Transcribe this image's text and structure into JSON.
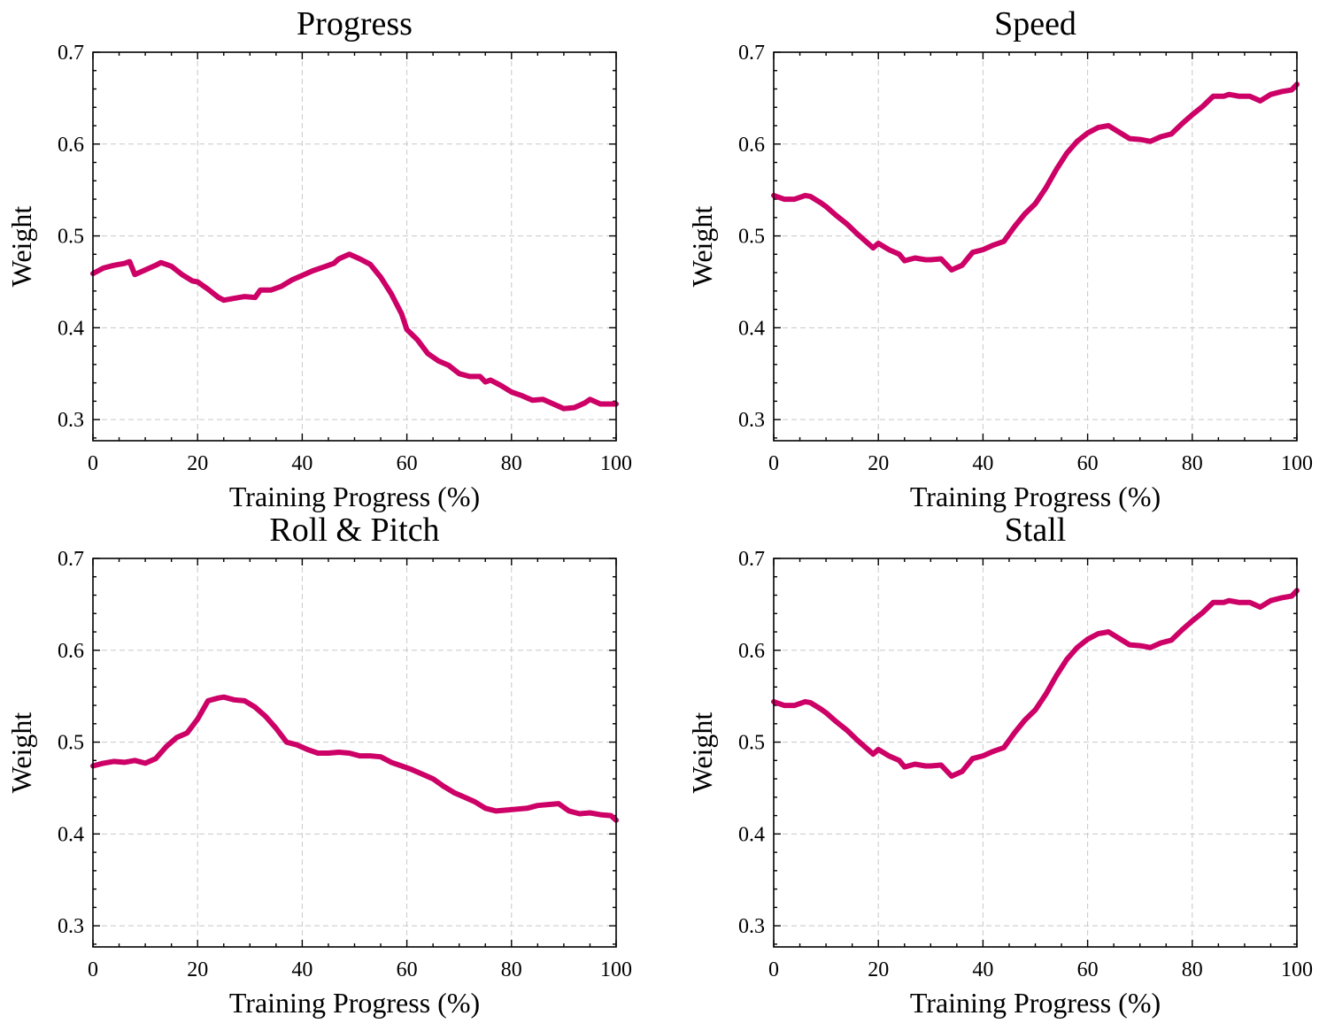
{
  "chart_data": [
    {
      "type": "line",
      "title": "Progress",
      "xlabel": "Training Progress (%)",
      "ylabel": "Weight",
      "xlim": [
        0,
        100
      ],
      "ylim": [
        0.277,
        0.7
      ],
      "xticks": [
        0,
        20,
        40,
        60,
        80,
        100
      ],
      "yticks": [
        0.3,
        0.4,
        0.5,
        0.6,
        0.7
      ],
      "xtick_labels": [
        "0",
        "20",
        "40",
        "60",
        "80",
        "100"
      ],
      "ytick_labels": [
        "0.3",
        "0.4",
        "0.5",
        "0.6",
        "0.7"
      ],
      "grid": true,
      "series": [
        {
          "color": "#cc0066",
          "x": [
            0,
            2,
            4,
            6,
            7,
            8,
            10,
            12,
            13,
            15,
            17,
            19,
            20,
            22,
            24,
            25,
            27,
            29,
            31,
            32,
            34,
            36,
            38,
            40,
            42,
            44,
            46,
            47,
            49,
            51,
            53,
            55,
            57,
            59,
            60,
            62,
            64,
            66,
            68,
            70,
            72,
            74,
            75,
            76,
            78,
            80,
            82,
            84,
            86,
            88,
            90,
            92,
            94,
            95,
            97,
            100
          ],
          "y": [
            0.459,
            0.465,
            0.468,
            0.47,
            0.472,
            0.458,
            0.463,
            0.468,
            0.471,
            0.467,
            0.458,
            0.451,
            0.45,
            0.442,
            0.433,
            0.43,
            0.432,
            0.434,
            0.433,
            0.441,
            0.441,
            0.445,
            0.452,
            0.457,
            0.462,
            0.466,
            0.47,
            0.475,
            0.48,
            0.475,
            0.469,
            0.455,
            0.437,
            0.415,
            0.398,
            0.387,
            0.372,
            0.364,
            0.359,
            0.35,
            0.347,
            0.347,
            0.341,
            0.343,
            0.337,
            0.33,
            0.326,
            0.321,
            0.322,
            0.317,
            0.312,
            0.313,
            0.318,
            0.322,
            0.317,
            0.317
          ]
        }
      ]
    },
    {
      "type": "line",
      "title": "Speed",
      "xlabel": "Training Progress (%)",
      "ylabel": "Weight",
      "xlim": [
        0,
        100
      ],
      "ylim": [
        0.277,
        0.7
      ],
      "xticks": [
        0,
        20,
        40,
        60,
        80,
        100
      ],
      "yticks": [
        0.3,
        0.4,
        0.5,
        0.6,
        0.7
      ],
      "xtick_labels": [
        "0",
        "20",
        "40",
        "60",
        "80",
        "100"
      ],
      "ytick_labels": [
        "0.3",
        "0.4",
        "0.5",
        "0.6",
        "0.7"
      ],
      "grid": true,
      "series": [
        {
          "color": "#cc0066",
          "x": [
            0,
            2,
            4,
            6,
            7,
            9,
            10,
            12,
            14,
            16,
            18,
            19,
            20,
            22,
            24,
            25,
            27,
            29,
            30,
            32,
            34,
            36,
            38,
            40,
            42,
            44,
            46,
            48,
            50,
            52,
            54,
            56,
            58,
            60,
            62,
            64,
            66,
            68,
            70,
            72,
            74,
            76,
            78,
            80,
            82,
            84,
            86,
            87,
            89,
            91,
            93,
            95,
            97,
            99,
            100
          ],
          "y": [
            0.544,
            0.54,
            0.54,
            0.544,
            0.543,
            0.536,
            0.532,
            0.522,
            0.513,
            0.502,
            0.492,
            0.487,
            0.492,
            0.485,
            0.48,
            0.473,
            0.476,
            0.474,
            0.474,
            0.475,
            0.463,
            0.468,
            0.482,
            0.485,
            0.49,
            0.494,
            0.51,
            0.524,
            0.535,
            0.552,
            0.572,
            0.59,
            0.603,
            0.612,
            0.618,
            0.62,
            0.613,
            0.606,
            0.605,
            0.603,
            0.608,
            0.611,
            0.622,
            0.632,
            0.641,
            0.652,
            0.652,
            0.654,
            0.652,
            0.652,
            0.647,
            0.654,
            0.657,
            0.659,
            0.665
          ]
        }
      ]
    },
    {
      "type": "line",
      "title": "Roll & Pitch",
      "xlabel": "Training Progress (%)",
      "ylabel": "Weight",
      "xlim": [
        0,
        100
      ],
      "ylim": [
        0.277,
        0.7
      ],
      "xticks": [
        0,
        20,
        40,
        60,
        80,
        100
      ],
      "yticks": [
        0.3,
        0.4,
        0.5,
        0.6,
        0.7
      ],
      "xtick_labels": [
        "0",
        "20",
        "40",
        "60",
        "80",
        "100"
      ],
      "ytick_labels": [
        "0.3",
        "0.4",
        "0.5",
        "0.6",
        "0.7"
      ],
      "grid": true,
      "series": [
        {
          "color": "#cc0066",
          "x": [
            0,
            2,
            4,
            6,
            8,
            10,
            12,
            14,
            16,
            18,
            20,
            22,
            24,
            25,
            27,
            29,
            31,
            33,
            35,
            37,
            39,
            41,
            43,
            45,
            47,
            49,
            51,
            53,
            55,
            57,
            59,
            61,
            63,
            65,
            67,
            69,
            71,
            73,
            75,
            77,
            79,
            81,
            83,
            85,
            87,
            89,
            91,
            93,
            95,
            97,
            99,
            100
          ],
          "y": [
            0.474,
            0.477,
            0.479,
            0.478,
            0.48,
            0.477,
            0.482,
            0.495,
            0.505,
            0.51,
            0.525,
            0.545,
            0.548,
            0.549,
            0.546,
            0.545,
            0.538,
            0.528,
            0.515,
            0.5,
            0.497,
            0.492,
            0.488,
            0.488,
            0.489,
            0.488,
            0.485,
            0.485,
            0.484,
            0.478,
            0.474,
            0.47,
            0.465,
            0.46,
            0.452,
            0.445,
            0.44,
            0.435,
            0.428,
            0.425,
            0.426,
            0.427,
            0.428,
            0.431,
            0.432,
            0.433,
            0.425,
            0.422,
            0.423,
            0.421,
            0.42,
            0.415
          ]
        }
      ]
    },
    {
      "type": "line",
      "title": "Stall",
      "xlabel": "Training Progress (%)",
      "ylabel": "Weight",
      "xlim": [
        0,
        100
      ],
      "ylim": [
        0.277,
        0.7
      ],
      "xticks": [
        0,
        20,
        40,
        60,
        80,
        100
      ],
      "yticks": [
        0.3,
        0.4,
        0.5,
        0.6,
        0.7
      ],
      "xtick_labels": [
        "0",
        "20",
        "40",
        "60",
        "80",
        "100"
      ],
      "ytick_labels": [
        "0.3",
        "0.4",
        "0.5",
        "0.6",
        "0.7"
      ],
      "grid": true,
      "series": [
        {
          "color": "#cc0066",
          "x": [
            0,
            2,
            4,
            6,
            7,
            9,
            10,
            12,
            14,
            16,
            18,
            19,
            20,
            22,
            24,
            25,
            27,
            29,
            30,
            32,
            34,
            36,
            38,
            40,
            42,
            44,
            46,
            48,
            50,
            52,
            54,
            56,
            58,
            60,
            62,
            64,
            66,
            68,
            70,
            72,
            74,
            76,
            78,
            80,
            82,
            84,
            86,
            87,
            89,
            91,
            93,
            95,
            97,
            99,
            100
          ],
          "y": [
            0.544,
            0.54,
            0.54,
            0.544,
            0.543,
            0.536,
            0.532,
            0.522,
            0.513,
            0.502,
            0.492,
            0.487,
            0.492,
            0.485,
            0.48,
            0.473,
            0.476,
            0.474,
            0.474,
            0.475,
            0.463,
            0.468,
            0.482,
            0.485,
            0.49,
            0.494,
            0.51,
            0.524,
            0.535,
            0.552,
            0.572,
            0.59,
            0.603,
            0.612,
            0.618,
            0.62,
            0.613,
            0.606,
            0.605,
            0.603,
            0.608,
            0.611,
            0.622,
            0.632,
            0.641,
            0.652,
            0.652,
            0.654,
            0.652,
            0.652,
            0.647,
            0.654,
            0.657,
            0.659,
            0.665
          ]
        }
      ]
    }
  ]
}
